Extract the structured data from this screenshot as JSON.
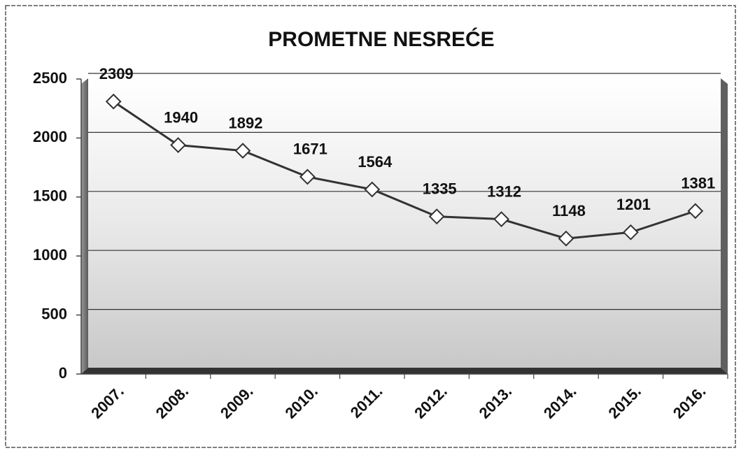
{
  "chart_data": {
    "type": "line",
    "title": "PROMETNE NESREĆE",
    "categories": [
      "2007.",
      "2008.",
      "2009.",
      "2010.",
      "2011.",
      "2012.",
      "2013.",
      "2014.",
      "2015.",
      "2016."
    ],
    "series": [
      {
        "name": "Prometne nesreće",
        "color": "#333333",
        "values": [
          2309,
          1940,
          1892,
          1671,
          1564,
          1335,
          1312,
          1148,
          1201,
          1381
        ]
      }
    ],
    "ylim": [
      0,
      2500
    ],
    "yticks": [
      0,
      500,
      1000,
      1500,
      2000,
      2500
    ],
    "grid": true
  }
}
